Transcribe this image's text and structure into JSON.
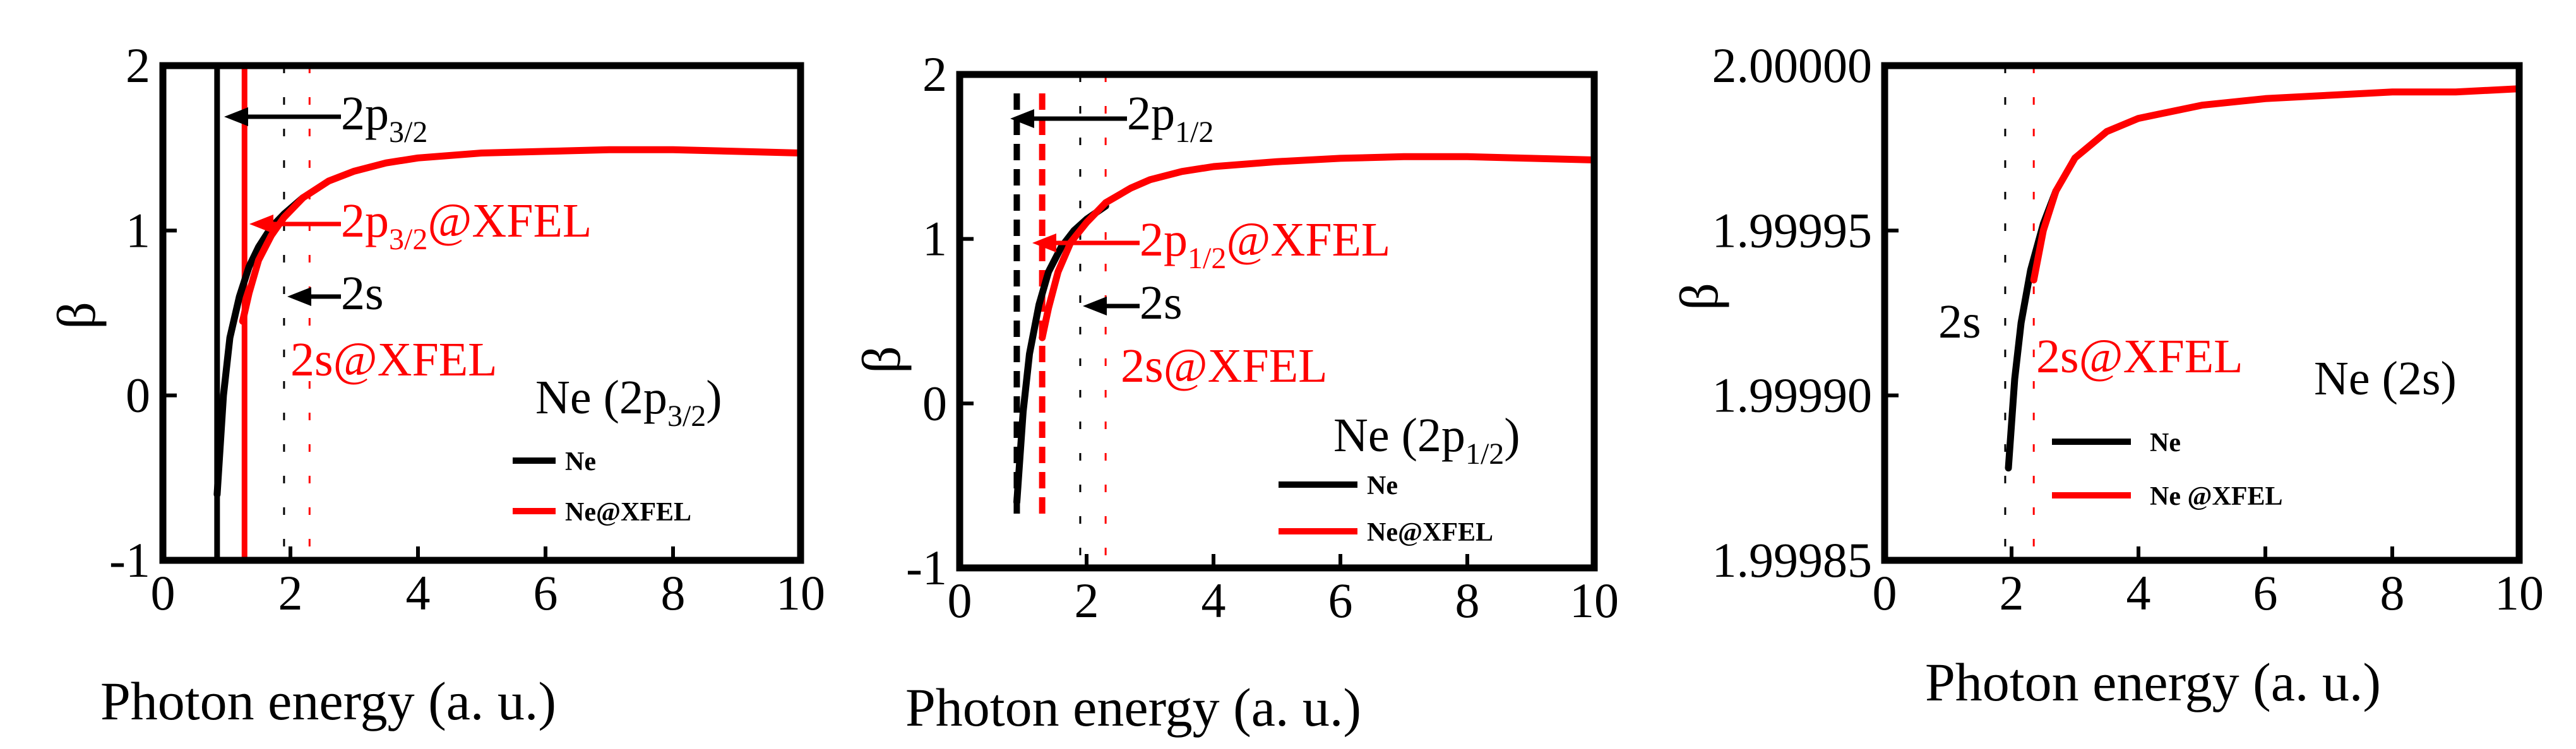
{
  "colors": {
    "ne": "#000000",
    "xfel": "#ff0000",
    "axis": "#000000"
  },
  "chart_data": [
    {
      "type": "line",
      "xlabel": "Photon energy (a. u.)",
      "ylabel": "β",
      "xlim": [
        0,
        10
      ],
      "ylim": [
        -1,
        2
      ],
      "xticks": [
        "0",
        "2",
        "4",
        "6",
        "8",
        "10"
      ],
      "yticks": [
        "-1",
        "0",
        "1",
        "2"
      ],
      "series": [
        {
          "name": "Ne",
          "color": "#000000",
          "x": [
            0.85,
            0.95,
            1.05,
            1.2,
            1.35,
            1.5,
            1.7,
            1.9,
            2.2
          ],
          "y": [
            -0.6,
            0.0,
            0.35,
            0.6,
            0.78,
            0.9,
            1.02,
            1.1,
            1.2
          ]
        },
        {
          "name": "Ne@XFEL",
          "color": "#ff0000",
          "x": [
            1.25,
            1.35,
            1.5,
            1.7,
            1.9,
            2.2,
            2.6,
            3.0,
            3.5,
            4.0,
            5.0,
            6.0,
            7.0,
            8.0,
            9.0,
            10.0
          ],
          "y": [
            0.45,
            0.62,
            0.82,
            0.97,
            1.08,
            1.2,
            1.3,
            1.36,
            1.41,
            1.44,
            1.47,
            1.48,
            1.49,
            1.49,
            1.48,
            1.47
          ]
        }
      ],
      "threshold_lines": [
        {
          "x": 0.85,
          "color": "#000000",
          "style": "solid",
          "label": "2p",
          "sub": "3/2",
          "suffix": ""
        },
        {
          "x": 1.28,
          "color": "#ff0000",
          "style": "solid",
          "label": "2p",
          "sub": "3/2",
          "suffix": "@XFEL"
        },
        {
          "x": 1.9,
          "color": "#000000",
          "style": "dotted",
          "label": "2s",
          "sub": "",
          "suffix": ""
        },
        {
          "x": 2.3,
          "color": "#ff0000",
          "style": "dotted",
          "label": "2s@XFEL",
          "sub": "",
          "suffix": ""
        }
      ],
      "panel_label": {
        "main": "Ne (2p",
        "sub": "3/2",
        "tail": ")"
      },
      "legend": [
        {
          "label": "Ne",
          "color": "#000000"
        },
        {
          "label": "Ne@XFEL",
          "color": "#ff0000"
        }
      ]
    },
    {
      "type": "line",
      "xlabel": "Photon energy (a. u.)",
      "ylabel": "β",
      "xlim": [
        0,
        10
      ],
      "ylim": [
        -1,
        2
      ],
      "xticks": [
        "0",
        "2",
        "4",
        "6",
        "8",
        "10"
      ],
      "yticks": [
        "-1",
        "0",
        "1",
        "2"
      ],
      "series": [
        {
          "name": "Ne",
          "color": "#000000",
          "x": [
            0.9,
            1.0,
            1.1,
            1.25,
            1.4,
            1.6,
            1.8,
            2.0,
            2.3
          ],
          "y": [
            -0.6,
            -0.05,
            0.3,
            0.6,
            0.8,
            0.95,
            1.05,
            1.12,
            1.2
          ]
        },
        {
          "name": "Ne@XFEL",
          "color": "#ff0000",
          "x": [
            1.3,
            1.4,
            1.55,
            1.75,
            2.0,
            2.3,
            2.7,
            3.0,
            3.5,
            4.0,
            5.0,
            6.0,
            7.0,
            8.0,
            9.0,
            10.0
          ],
          "y": [
            0.4,
            0.58,
            0.8,
            0.98,
            1.1,
            1.22,
            1.31,
            1.36,
            1.41,
            1.44,
            1.47,
            1.49,
            1.5,
            1.5,
            1.49,
            1.48
          ]
        }
      ],
      "threshold_lines": [
        {
          "x": 0.9,
          "color": "#000000",
          "style": "dashed",
          "label": "2p",
          "sub": "1/2",
          "suffix": ""
        },
        {
          "x": 1.3,
          "color": "#ff0000",
          "style": "dashed",
          "label": "2p",
          "sub": "1/2",
          "suffix": "@XFEL"
        },
        {
          "x": 1.9,
          "color": "#000000",
          "style": "dotted",
          "label": "2s",
          "sub": "",
          "suffix": ""
        },
        {
          "x": 2.3,
          "color": "#ff0000",
          "style": "dotted",
          "label": "2s@XFEL",
          "sub": "",
          "suffix": ""
        }
      ],
      "panel_label": {
        "main": "Ne (2p",
        "sub": "1/2",
        "tail": ")"
      },
      "legend": [
        {
          "label": "Ne",
          "color": "#000000"
        },
        {
          "label": "Ne@XFEL",
          "color": "#ff0000"
        }
      ]
    },
    {
      "type": "line",
      "xlabel": "Photon energy (a. u.)",
      "ylabel": "β",
      "xlim": [
        0,
        10
      ],
      "ylim": [
        1.99985,
        2.0
      ],
      "xticks": [
        "0",
        "2",
        "4",
        "6",
        "8",
        "10"
      ],
      "yticks": [
        "1.99985",
        "1.99990",
        "1.99995",
        "2.00000"
      ],
      "series": [
        {
          "name": "Ne",
          "color": "#000000",
          "x": [
            1.95,
            2.05,
            2.15,
            2.3,
            2.5,
            2.7
          ],
          "y": [
            1.999878,
            1.999905,
            1.999922,
            1.999938,
            1.999952,
            1.999962
          ]
        },
        {
          "name": "Ne @XFEL",
          "color": "#ff0000",
          "x": [
            2.35,
            2.5,
            2.7,
            3.0,
            3.5,
            4.0,
            5.0,
            6.0,
            7.0,
            8.0,
            9.0,
            10.0
          ],
          "y": [
            1.999935,
            1.99995,
            1.999962,
            1.999972,
            1.99998,
            1.999984,
            1.999988,
            1.99999,
            1.999991,
            1.999992,
            1.999992,
            1.999993
          ]
        }
      ],
      "threshold_lines": [
        {
          "x": 1.9,
          "color": "#000000",
          "style": "dotted",
          "label": "2s",
          "sub": "",
          "suffix": ""
        },
        {
          "x": 2.35,
          "color": "#ff0000",
          "style": "dotted",
          "label": "2s@XFEL",
          "sub": "",
          "suffix": ""
        }
      ],
      "panel_label": {
        "main": "Ne (2s)",
        "sub": "",
        "tail": ""
      },
      "legend": [
        {
          "label": "Ne",
          "color": "#000000"
        },
        {
          "label": "Ne @XFEL",
          "color": "#ff0000"
        }
      ]
    }
  ]
}
